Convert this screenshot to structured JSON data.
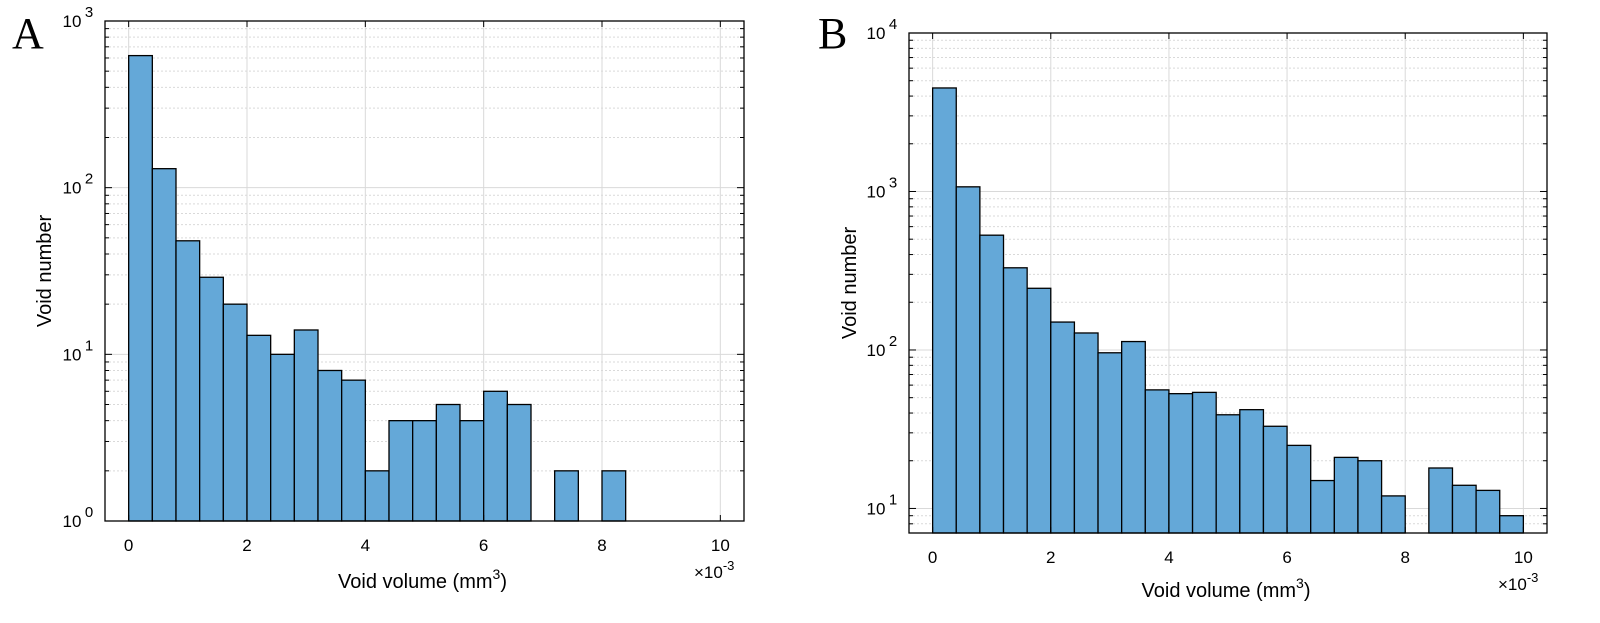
{
  "figure": {
    "panel_letters": [
      "A",
      "B"
    ]
  },
  "colors": {
    "bar_fill": "#64a8d8",
    "bar_stroke": "#000000",
    "grid": "#d9d9d9"
  },
  "chart_data": [
    {
      "type": "bar",
      "panel": "A",
      "xlabel": "Void volume (mm",
      "xlabel_superscript": "3",
      "xlabel_suffix": ")",
      "ylabel": "Void number",
      "x_multiplier": "×10",
      "x_multiplier_exp": "-3",
      "y_scale": "log",
      "grid": true,
      "xlim": [
        -0.4,
        10.4
      ],
      "ylim": [
        1,
        1000
      ],
      "x_ticks": [
        0,
        2,
        4,
        6,
        8,
        10
      ],
      "y_ticks": [
        {
          "base": "10",
          "exp": "0",
          "value": 1
        },
        {
          "base": "10",
          "exp": "1",
          "value": 10
        },
        {
          "base": "10",
          "exp": "2",
          "value": 100
        },
        {
          "base": "10",
          "exp": "3",
          "value": 1000
        }
      ],
      "bin_width": 0.4,
      "bin_starts": [
        0,
        0.4,
        0.8,
        1.2,
        1.6,
        2.0,
        2.4,
        2.8,
        3.2,
        3.6,
        4.0,
        4.4,
        4.8,
        5.2,
        5.6,
        6.0,
        6.4,
        6.8,
        7.2,
        7.6,
        8.0
      ],
      "values": [
        620,
        130,
        48,
        29,
        20,
        13,
        10,
        14,
        8,
        7,
        2,
        4,
        4,
        5,
        4,
        6,
        5,
        0,
        2,
        0,
        2
      ]
    },
    {
      "type": "bar",
      "panel": "B",
      "xlabel": "Void volume (mm",
      "xlabel_superscript": "3",
      "xlabel_suffix": ")",
      "ylabel": "Void number",
      "x_multiplier": "×10",
      "x_multiplier_exp": "-3",
      "y_scale": "log",
      "grid": true,
      "xlim": [
        -0.4,
        10.4
      ],
      "ylim": [
        7,
        10000
      ],
      "x_ticks": [
        0,
        2,
        4,
        6,
        8,
        10
      ],
      "y_ticks": [
        {
          "base": "10",
          "exp": "1",
          "value": 10
        },
        {
          "base": "10",
          "exp": "2",
          "value": 100
        },
        {
          "base": "10",
          "exp": "3",
          "value": 1000
        },
        {
          "base": "10",
          "exp": "4",
          "value": 10000
        }
      ],
      "bin_width": 0.4,
      "bin_starts": [
        0,
        0.4,
        0.8,
        1.2,
        1.6,
        2.0,
        2.4,
        2.8,
        3.2,
        3.6,
        4.0,
        4.4,
        4.8,
        5.2,
        5.6,
        6.0,
        6.4,
        6.8,
        7.2,
        7.6,
        8.0,
        8.4,
        8.8,
        9.2,
        9.6
      ],
      "values": [
        4500,
        1070,
        530,
        330,
        245,
        150,
        128,
        96,
        113,
        56,
        53,
        54,
        39,
        42,
        33,
        25,
        15,
        21,
        20,
        12,
        0,
        18,
        14,
        13,
        9
      ]
    }
  ]
}
